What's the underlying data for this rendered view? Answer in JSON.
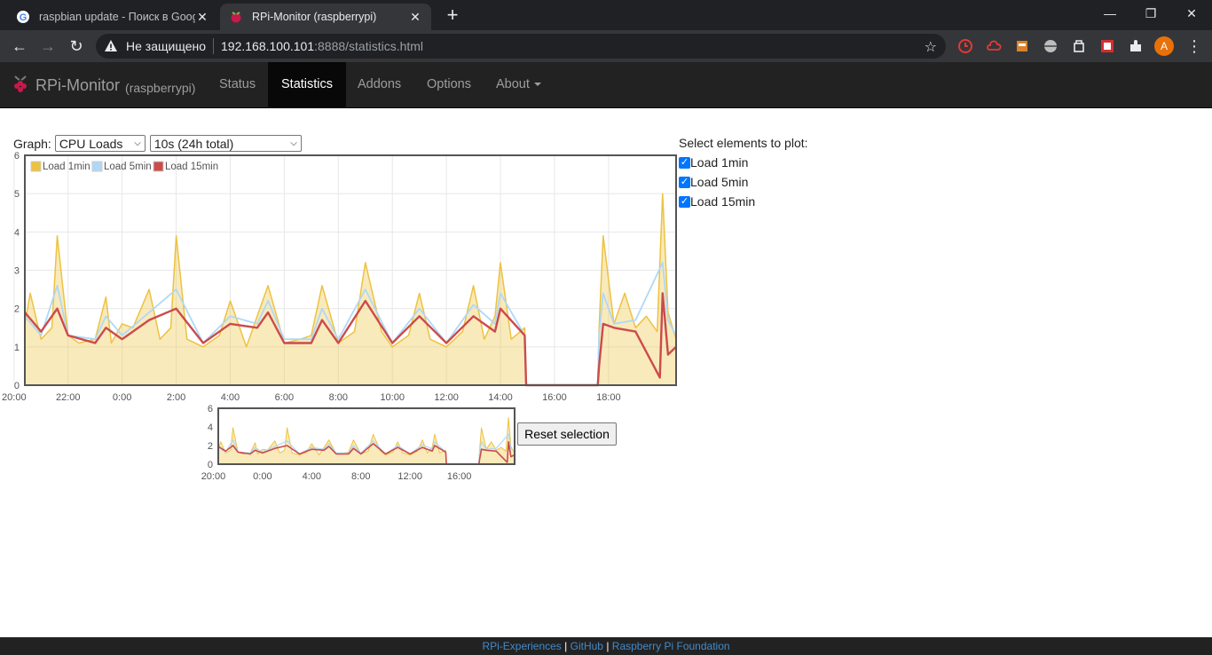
{
  "browser": {
    "tabs": [
      {
        "title": "raspbian update - Поиск в Goog",
        "active": false
      },
      {
        "title": "RPi-Monitor (raspberrypi)",
        "active": true
      }
    ],
    "address": {
      "security": "Не защищено",
      "host": "192.168.100.101",
      "path": ":8888/statistics.html"
    }
  },
  "navbar": {
    "brand": "RPi-Monitor",
    "host": "(raspberrypi)",
    "items": [
      "Status",
      "Statistics",
      "Addons",
      "Options",
      "About"
    ],
    "active": "Statistics"
  },
  "controls": {
    "graph_label": "Graph:",
    "graph_select": "CPU Loads",
    "interval_select": "10s (24h total)",
    "plot_title": "Select elements to plot:",
    "plot_items": [
      "Load 1min",
      "Load 5min",
      "Load 15min"
    ],
    "reset_label": "Reset selection"
  },
  "colors": {
    "load1": "#edc240",
    "load5": "#afd8f8",
    "load15": "#cb4b4b",
    "accent": "#0075ff"
  },
  "chart_data": [
    {
      "type": "area",
      "x_ticks": [
        "22:00",
        "0:00",
        "2:00",
        "4:00",
        "6:00",
        "8:00",
        "10:00",
        "12:00",
        "14:00",
        "16:00",
        "18:00",
        "20:00"
      ],
      "y_ticks": [
        "0",
        "1",
        "2",
        "3",
        "4",
        "5",
        "6"
      ],
      "ylim": [
        0,
        6
      ],
      "xlim_hours": [
        20.4,
        44.5
      ],
      "grid": true,
      "legend": "top-left",
      "series": [
        {
          "name": "Load 1min",
          "color": "#edc240",
          "x_hours": [
            20.4,
            20.6,
            21.0,
            21.4,
            21.6,
            22.0,
            22.4,
            23.0,
            23.4,
            23.6,
            24.0,
            24.4,
            25.0,
            25.4,
            25.8,
            26.0,
            26.4,
            27.0,
            27.6,
            28.0,
            28.6,
            29.0,
            29.4,
            30.0,
            30.6,
            31.0,
            31.4,
            32.0,
            32.2,
            32.6,
            33.0,
            33.6,
            34.0,
            34.6,
            35.0,
            35.4,
            36.0,
            36.6,
            37.0,
            37.4,
            37.8,
            38.0,
            38.4,
            38.9,
            38.95,
            41.6,
            41.65,
            41.8,
            42.2,
            42.6,
            43.0,
            43.4,
            43.8,
            44.0,
            44.2,
            44.5
          ],
          "y": [
            1.6,
            2.4,
            1.2,
            1.5,
            3.9,
            1.3,
            1.1,
            1.2,
            2.3,
            1.1,
            1.6,
            1.5,
            2.5,
            1.2,
            1.5,
            3.9,
            1.2,
            1.0,
            1.3,
            2.2,
            1.0,
            1.8,
            2.6,
            1.1,
            1.2,
            1.3,
            2.6,
            1.1,
            1.2,
            1.4,
            3.2,
            1.4,
            1.0,
            1.3,
            2.4,
            1.2,
            1.0,
            1.4,
            2.6,
            1.2,
            1.8,
            3.2,
            1.2,
            1.5,
            0.0,
            0.0,
            1.5,
            3.9,
            1.6,
            2.4,
            1.5,
            1.8,
            1.4,
            5.0,
            1.9,
            1.2
          ]
        },
        {
          "name": "Load 5min",
          "color": "#afd8f8",
          "x_hours": [
            20.4,
            21.0,
            21.6,
            22.0,
            23.0,
            23.4,
            24.0,
            25.0,
            26.0,
            27.0,
            28.0,
            29.0,
            29.4,
            30.0,
            31.0,
            31.4,
            32.0,
            33.0,
            34.0,
            35.0,
            36.0,
            37.0,
            37.8,
            38.0,
            38.9,
            38.95,
            41.6,
            41.65,
            41.8,
            42.2,
            43.0,
            44.0,
            44.2,
            44.5
          ],
          "y": [
            1.8,
            1.3,
            2.6,
            1.3,
            1.2,
            1.8,
            1.3,
            1.9,
            2.5,
            1.1,
            1.8,
            1.6,
            2.2,
            1.2,
            1.2,
            2.0,
            1.2,
            2.5,
            1.1,
            2.0,
            1.1,
            2.1,
            1.6,
            2.4,
            1.3,
            0.0,
            0.0,
            1.3,
            2.4,
            1.6,
            1.7,
            3.2,
            1.7,
            1.3
          ]
        },
        {
          "name": "Load 15min",
          "color": "#cb4b4b",
          "x_hours": [
            20.4,
            21.0,
            21.6,
            22.0,
            23.0,
            23.4,
            24.0,
            25.0,
            26.0,
            27.0,
            28.0,
            29.0,
            29.4,
            30.0,
            31.0,
            31.4,
            32.0,
            33.0,
            34.0,
            35.0,
            36.0,
            37.0,
            37.8,
            38.0,
            38.9,
            38.95,
            41.6,
            41.65,
            41.8,
            42.2,
            43.0,
            43.9,
            44.0,
            44.2,
            44.5
          ],
          "y": [
            1.9,
            1.4,
            2.0,
            1.3,
            1.1,
            1.5,
            1.2,
            1.7,
            2.0,
            1.1,
            1.6,
            1.5,
            1.9,
            1.1,
            1.1,
            1.7,
            1.1,
            2.2,
            1.1,
            1.8,
            1.1,
            1.8,
            1.4,
            2.0,
            1.3,
            0.0,
            0.0,
            0.5,
            1.6,
            1.5,
            1.4,
            0.2,
            2.4,
            0.8,
            1.0
          ]
        }
      ]
    },
    {
      "type": "area",
      "x_ticks": [
        "0:00",
        "4:00",
        "8:00",
        "12:00",
        "16:00",
        "20:00"
      ],
      "y_ticks": [
        "0",
        "2",
        "4",
        "6"
      ],
      "ylim": [
        0,
        6
      ],
      "xlim_hours": [
        20.4,
        44.5
      ],
      "grid": false
    }
  ],
  "footer": {
    "links": [
      "RPi-Experiences",
      "GitHub",
      "Raspberry Pi Foundation"
    ],
    "sep": "|"
  }
}
